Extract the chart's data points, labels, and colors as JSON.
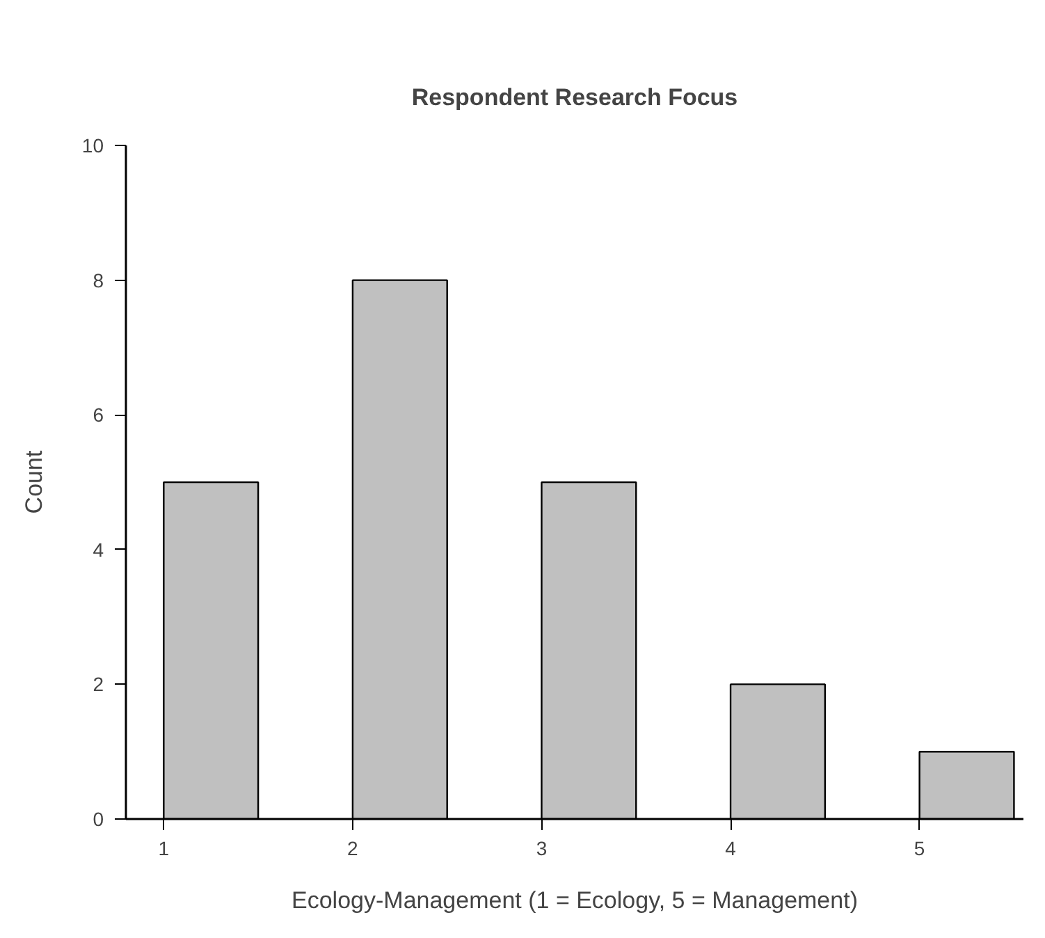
{
  "chart_data": {
    "type": "bar",
    "title": "Respondent Research Focus",
    "xlabel": "Ecology-Management (1 = Ecology, 5 = Management)",
    "ylabel": "Count",
    "x": [
      1.25,
      2.25,
      3.25,
      4.25,
      5.25
    ],
    "values": [
      5,
      8,
      5,
      2,
      1
    ],
    "color": "#c0c0c0",
    "xlim": [
      0.8,
      5.55
    ],
    "xticks": [
      1,
      2,
      3,
      4,
      5
    ],
    "ylim": [
      0,
      10
    ],
    "yticks": [
      0,
      2,
      4,
      6,
      8,
      10
    ],
    "grid": false
  }
}
